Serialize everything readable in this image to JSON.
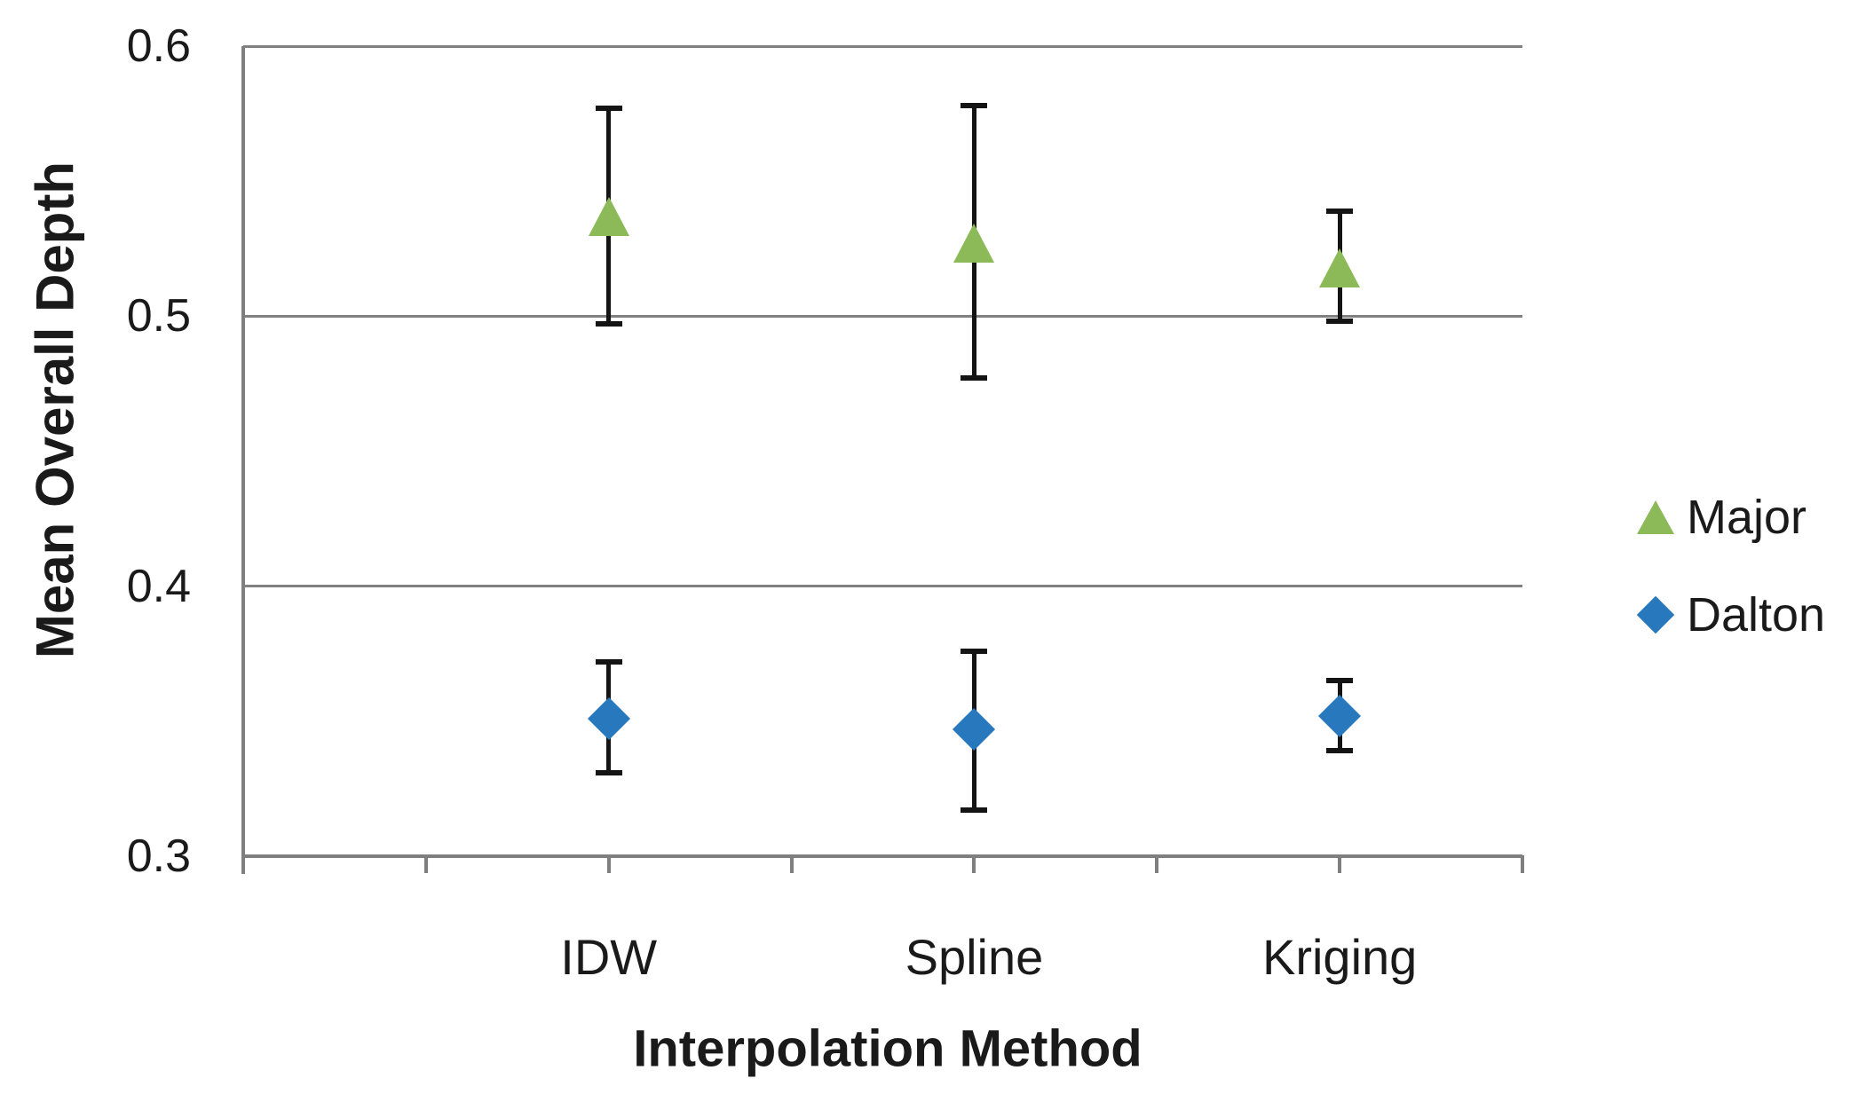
{
  "chart_data": {
    "type": "scatter",
    "title": "",
    "xlabel": "Interpolation Method",
    "ylabel": "Mean Overall Depth",
    "categories": [
      "IDW",
      "Spline",
      "Kriging"
    ],
    "x_positions": [
      1,
      2,
      3
    ],
    "xlim": [
      0,
      3.5
    ],
    "x_tick_interval": 0.5,
    "ylim": [
      0.3,
      0.6
    ],
    "yticks": [
      0.6,
      0.5,
      0.4,
      0.3
    ],
    "ytick_labels": [
      "0.6",
      "0.5",
      "0.4",
      "0.3"
    ],
    "grid": "horizontal-major",
    "legend_position": "right-center",
    "error_bars": true,
    "series": [
      {
        "name": "Major",
        "marker": "triangle",
        "color": "#8CBA59",
        "values": [
          0.537,
          0.527,
          0.518
        ],
        "error_low": [
          0.497,
          0.477,
          0.498
        ],
        "error_high": [
          0.577,
          0.578,
          0.539
        ]
      },
      {
        "name": "Dalton",
        "marker": "diamond",
        "color": "#2878BE",
        "values": [
          0.351,
          0.347,
          0.352
        ],
        "error_low": [
          0.331,
          0.317,
          0.339
        ],
        "error_high": [
          0.372,
          0.376,
          0.365
        ]
      }
    ],
    "colors": {
      "gridline": "#808080",
      "axis": "#7F7F7F",
      "error_bar": "#141414",
      "text": "#1A1A1A"
    }
  }
}
